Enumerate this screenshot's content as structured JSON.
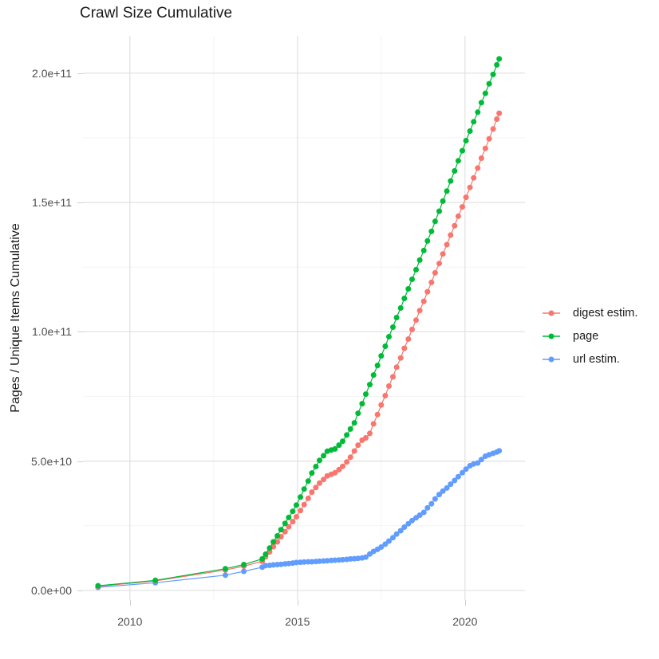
{
  "title": "Crawl Size Cumulative",
  "y_axis": {
    "label": "Pages / Unique Items Cumulative"
  },
  "colors": {
    "background": "#FFFFFF",
    "grid_major": "#E3E3E3",
    "grid_minor": "#F1F1F1",
    "tick_mark": "#CFCFCF",
    "axis_text": "#4D4D4D",
    "title_text": "#1A1A1A"
  },
  "legend": {
    "position": "right",
    "items": [
      {
        "label": "digest estim.",
        "color": "#F8766D"
      },
      {
        "label": "page",
        "color": "#00BA38"
      },
      {
        "label": "url estim.",
        "color": "#619CFF"
      }
    ]
  },
  "chart_data": {
    "type": "scatter",
    "title": "Crawl Size Cumulative",
    "xlabel": "",
    "ylabel": "Pages / Unique Items Cumulative",
    "grid": true,
    "legend_position": "right",
    "x_unit": "year (fractional = crawl date)",
    "y_unit": "items, in billions (1e9)",
    "xlim": [
      2008.6,
      2021.79
    ],
    "ylim_e9": [
      -3.7,
      214.4
    ],
    "x_ticks": {
      "major": [
        {
          "year": 2010,
          "label": "2010"
        },
        {
          "year": 2015,
          "label": "2015"
        },
        {
          "year": 2020,
          "label": "2020"
        }
      ],
      "minor_years": [
        2012.5,
        2017.5
      ]
    },
    "y_ticks": {
      "major": [
        {
          "value_e9": 0,
          "label": "0.0e+00"
        },
        {
          "value_e9": 50,
          "label": "5.0e+10"
        },
        {
          "value_e9": 100,
          "label": "1.0e+11"
        },
        {
          "value_e9": 150,
          "label": "1.5e+11"
        },
        {
          "value_e9": 200,
          "label": "2.0e+11"
        }
      ],
      "minor_values_e9": [
        25,
        75,
        125,
        175
      ]
    },
    "x_years": [
      2009.05,
      2010.76,
      2012.85,
      2013.4,
      2013.95,
      2014.05,
      2014.17,
      2014.28,
      2014.4,
      2014.51,
      2014.63,
      2014.74,
      2014.86,
      2014.97,
      2015.09,
      2015.2,
      2015.32,
      2015.43,
      2015.55,
      2015.66,
      2015.78,
      2015.89,
      2016.01,
      2016.12,
      2016.24,
      2016.35,
      2016.47,
      2016.58,
      2016.7,
      2016.81,
      2016.93,
      2017.04,
      2017.16,
      2017.27,
      2017.39,
      2017.5,
      2017.62,
      2017.73,
      2017.85,
      2017.96,
      2018.08,
      2018.19,
      2018.31,
      2018.42,
      2018.54,
      2018.65,
      2018.77,
      2018.88,
      2019.0,
      2019.11,
      2019.23,
      2019.34,
      2019.46,
      2019.57,
      2019.69,
      2019.8,
      2019.92,
      2020.03,
      2020.15,
      2020.26,
      2020.38,
      2020.49,
      2020.61,
      2020.72,
      2020.84,
      2020.95,
      2021.02
    ],
    "series": [
      {
        "name": "url estim.",
        "legend_label": "url estim.",
        "color": "#619CFF",
        "values_e9": [
          1.2,
          3.0,
          5.9,
          7.4,
          9.0,
          9.6,
          9.7,
          9.9,
          10.0,
          10.1,
          10.3,
          10.4,
          10.6,
          10.8,
          10.9,
          11.0,
          11.1,
          11.1,
          11.2,
          11.3,
          11.4,
          11.5,
          11.6,
          11.7,
          11.8,
          11.9,
          12.0,
          12.2,
          12.3,
          12.4,
          12.6,
          12.9,
          14.1,
          15.1,
          15.9,
          16.8,
          17.9,
          19.1,
          20.4,
          21.8,
          23.1,
          24.5,
          25.8,
          27.0,
          28.1,
          29.1,
          30.2,
          31.9,
          33.5,
          35.4,
          37.1,
          38.4,
          39.6,
          41.1,
          42.5,
          44.0,
          45.5,
          46.9,
          48.2,
          48.9,
          49.3,
          50.6,
          51.9,
          52.5,
          53.0,
          53.5,
          54.0
        ]
      },
      {
        "name": "digest estim.",
        "legend_label": "digest estim.",
        "color": "#F8766D",
        "values_e9": [
          1.6,
          3.7,
          7.9,
          9.4,
          11.3,
          13.0,
          14.9,
          16.9,
          18.8,
          20.8,
          22.7,
          24.6,
          26.6,
          28.5,
          30.9,
          33.2,
          35.6,
          38.0,
          39.8,
          41.5,
          42.9,
          44.3,
          44.9,
          45.5,
          46.7,
          48.0,
          49.7,
          51.5,
          53.9,
          56.2,
          58.1,
          59.0,
          60.7,
          64.4,
          68.0,
          71.7,
          75.3,
          79.0,
          82.6,
          86.3,
          89.9,
          93.6,
          97.2,
          100.9,
          104.5,
          108.2,
          111.8,
          115.5,
          119.1,
          122.8,
          126.4,
          130.1,
          133.7,
          137.4,
          141.0,
          144.7,
          148.3,
          152.0,
          155.8,
          159.5,
          163.3,
          167.1,
          170.9,
          174.6,
          178.4,
          182.2,
          184.5
        ]
      },
      {
        "name": "page",
        "legend_label": "page",
        "color": "#00BA38",
        "values_e9": [
          1.8,
          3.9,
          8.4,
          10.0,
          12.2,
          14.0,
          16.4,
          18.8,
          21.1,
          23.5,
          25.9,
          28.2,
          30.6,
          33.0,
          36.1,
          39.2,
          42.3,
          45.4,
          47.9,
          50.3,
          52.1,
          53.8,
          54.3,
          54.7,
          56.2,
          57.7,
          60.1,
          62.4,
          64.8,
          68.5,
          72.2,
          75.9,
          79.6,
          83.3,
          87.0,
          90.7,
          94.4,
          98.1,
          101.8,
          105.5,
          109.2,
          112.9,
          116.6,
          120.3,
          124.0,
          127.7,
          131.4,
          135.1,
          138.8,
          142.7,
          146.6,
          150.5,
          154.4,
          158.3,
          162.2,
          166.1,
          170.0,
          173.9,
          177.6,
          181.2,
          184.9,
          188.6,
          192.2,
          195.9,
          199.5,
          203.2,
          205.5
        ]
      }
    ]
  }
}
